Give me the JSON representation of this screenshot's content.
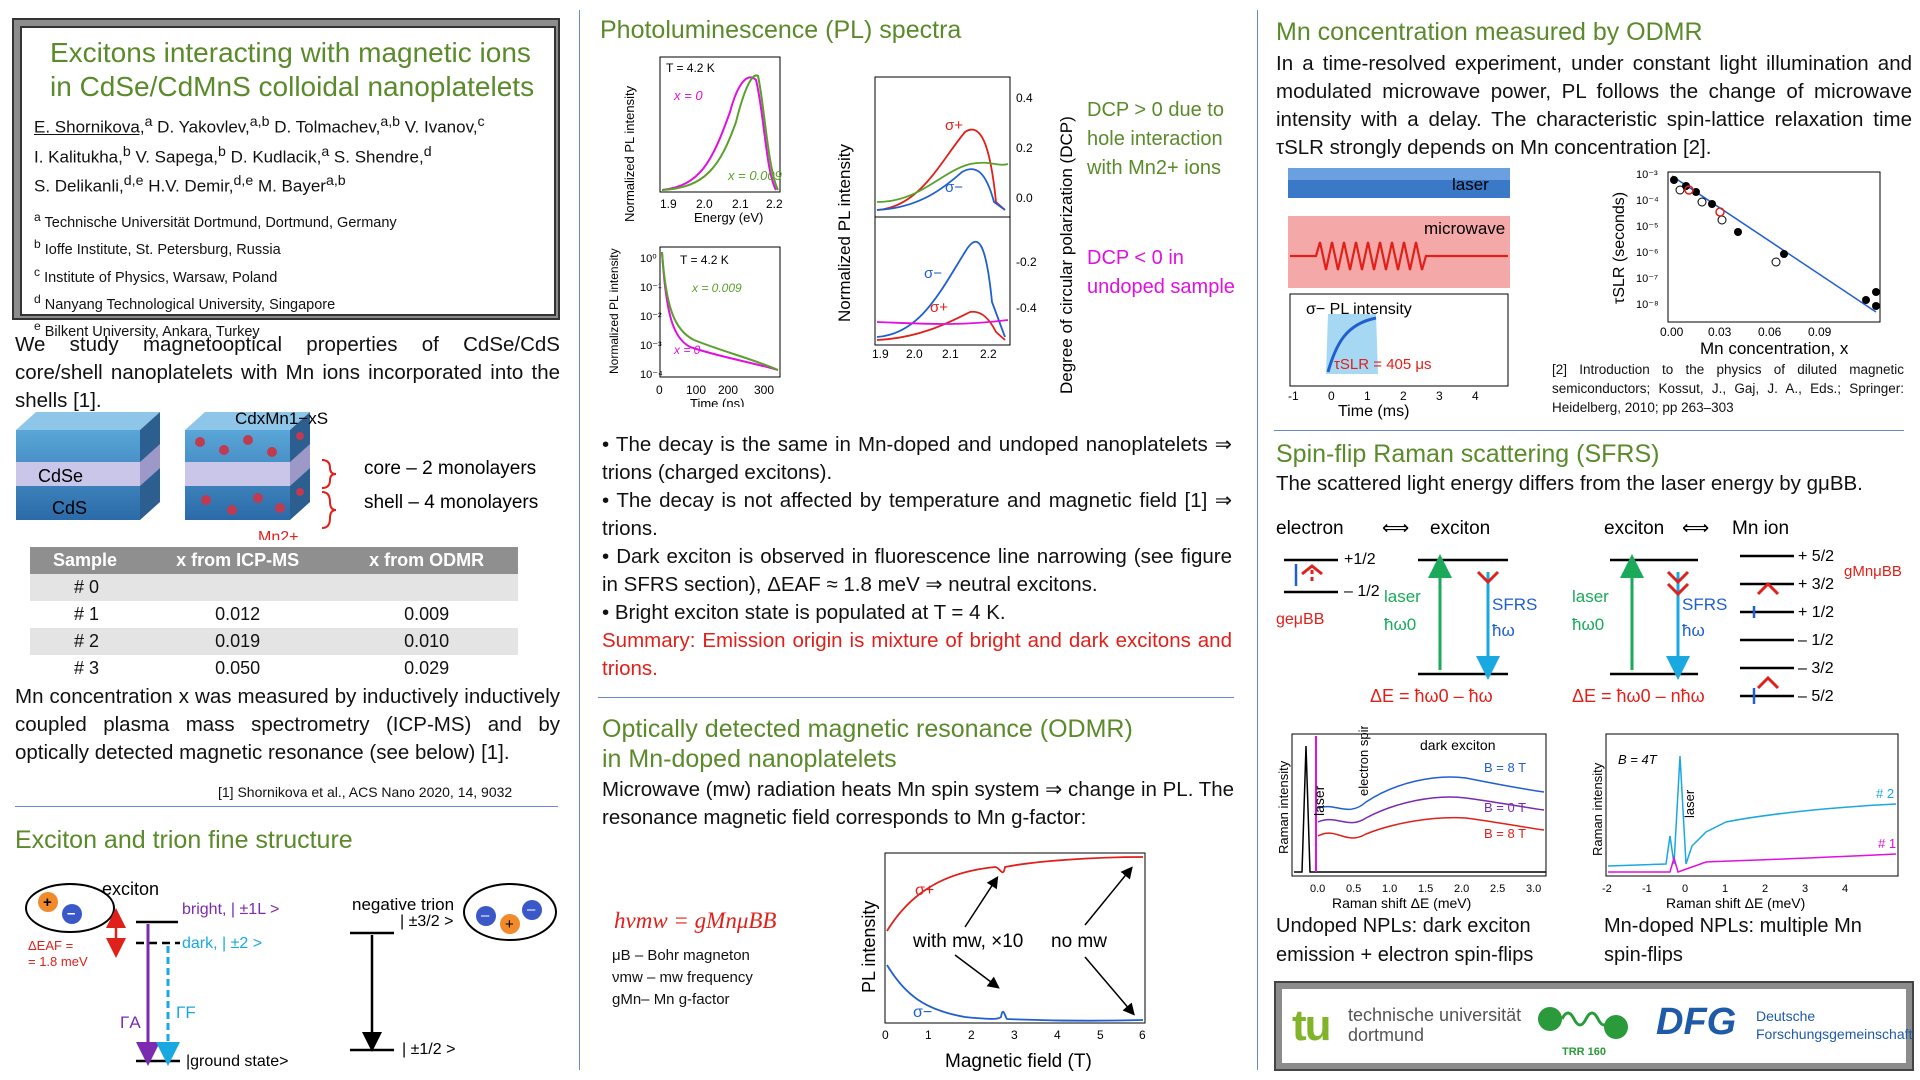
{
  "title": {
    "line1": "Excitons interacting with magnetic ions",
    "line2": "in CdSe/CdMnS colloidal nanoplatelets",
    "authors1": "E. Shornikova,",
    "authors1b": "D. Yakovlev,",
    "authors1c": "D. Tolmachev,",
    "authors1d": "V. Ivanov,",
    "sup_a": "a",
    "sup_ab": "a,b",
    "sup_c": "c",
    "sup_b": "b",
    "sup_d": "d",
    "sup_de": "d,e",
    "authors2a": "I. Kalitukha,",
    "authors2b": "V. Sapega,",
    "authors2c": "D. Kudlacik,",
    "authors2d": "S. Shendre,",
    "authors3a": "S. Delikanli,",
    "authors3b": "H.V. Demir,",
    "authors3c": "M. Bayer",
    "aff": [
      {
        "sup": "a",
        "text": "Technische Universität Dortmund, Dortmund, Germany"
      },
      {
        "sup": "b",
        "text": "Ioffe Institute, St. Petersburg, Russia"
      },
      {
        "sup": "c",
        "text": "Institute of Physics, Warsaw, Poland"
      },
      {
        "sup": "d",
        "text": "Nanyang Technological University, Singapore"
      },
      {
        "sup": "e",
        "text": "Bilkent University, Ankara, Turkey"
      }
    ]
  },
  "intro": "We study magnetooptical properties of CdSe/CdS core/shell nanoplatelets with Mn ions incorporated into the shells [1].",
  "npl": {
    "formula": "CdxMn1−xS",
    "cdse": "CdSe",
    "cds": "CdS",
    "mn": "Mn2+",
    "core": "core – 2 monolayers",
    "shell": "shell – 4 monolayers"
  },
  "table": {
    "headers": [
      "Sample",
      "x from ICP-MS",
      "x from ODMR"
    ],
    "rows": [
      [
        "# 0",
        "",
        ""
      ],
      [
        "# 1",
        "0.012",
        "0.009"
      ],
      [
        "# 2",
        "0.019",
        "0.010"
      ],
      [
        "# 3",
        "0.050",
        "0.029"
      ]
    ]
  },
  "mn_conc_text": "Mn concentration x was measured by inductively inductively coupled plasma mass spectrometry (ICP-MS) and by optically detected magnetic resonance (see below) [1].",
  "ref1": "[1] Shornikova et al., ACS Nano 2020, 14, 9032",
  "fine": {
    "title": "Exciton and trion fine structure",
    "exciton": "exciton",
    "bright": "bright, | ±1L >",
    "dark": "dark, | ±2 >",
    "daf1": "ΔEAF =",
    "daf2": "= 1.8 meV",
    "gamma_a": "ΓA",
    "gamma_f": "ΓF",
    "ground": "|ground state>",
    "trion": "negative trion",
    "t32": "| ±3/2 >",
    "t12": "| ±1/2 >"
  },
  "pl": {
    "title": "Photoluminescence (PL) spectra",
    "bullets": [
      "• The decay is the same in Mn-doped and undoped nanoplatelets ⇒ trions (charged excitons).",
      "• The decay is not affected by temperature and magnetic field [1] ⇒ trions.",
      "• Dark exciton is observed in fluorescence line narrowing (see figure in SFRS section), ΔEAF ≈ 1.8 meV ⇒ neutral excitons.",
      "• Bright exciton state is populated at T = 4 K."
    ],
    "summary": "Summary: Emission origin is mixture of bright and dark excitons and trions.",
    "dcp_pos": "DCP > 0 due to hole interaction with Mn2+ ions",
    "dcp_neg": "DCP < 0 in undoped sample",
    "fig1": {
      "t": "T = 4.2 K",
      "x0": "x = 0",
      "x9": "x = 0.009",
      "xlabel": "Energy (eV)",
      "ylabel": "Normalized PL intensity",
      "ticks": [
        "1.9",
        "2.0",
        "2.1",
        "2.2"
      ]
    },
    "fig2": {
      "t": "T = 4.2 K",
      "x9": "x = 0.009",
      "x0": "x = 0",
      "xlabel": "Time (ns)",
      "ylabel": "Normalized PL intensity",
      "ticks": [
        "0",
        "100",
        "200",
        "300"
      ],
      "yticks": [
        "10⁰",
        "10⁻¹",
        "10⁻²",
        "10⁻³",
        "10⁻⁴"
      ]
    },
    "fig3": {
      "ylabel": "Normalized PL intensity",
      "yr": "Degree of circular polarization (DCP)",
      "sp": "σ+",
      "sm": "σ−",
      "ticks": [
        "1.9",
        "2.0",
        "2.1",
        "2.2"
      ],
      "rt1": [
        "0.4",
        "0.2",
        "0.0"
      ],
      "rt2": [
        "-0.2",
        "-0.4"
      ]
    }
  },
  "odmr": {
    "title1": "Optically detected magnetic resonance (ODMR)",
    "title2": "in Mn-doped nanoplatelets",
    "text": "Microwave (mw) radiation heats Mn spin system ⇒ change in PL. The resonance magnetic field corresponds to Mn g-factor:",
    "eq": "hνmw = gMnμBB",
    "l1": "μB – Bohr magneton",
    "l2": "νmw – mw frequency",
    "l3": "gMn– Mn g-factor",
    "withmw": "with mw, ×10",
    "nomw": "no mw",
    "sp": "σ+",
    "sm": "σ−",
    "ylabel": "PL intensity",
    "xlabel": "Magnetic field (T)",
    "ticks": [
      "0",
      "1",
      "2",
      "3",
      "4",
      "5",
      "6"
    ]
  },
  "mnc": {
    "title": "Mn concentration measured by ODMR",
    "text": "In a time-resolved experiment, under constant light illumination and modulated microwave power, PL follows the change of microwave intensity with a delay. The characteristic spin-lattice relaxation time τSLR strongly depends on Mn concentration [2].",
    "laser": "laser",
    "microwave": "microwave",
    "pl": "σ− PL intensity",
    "tau": "τSLR = 405 μs",
    "time": "Time (ms)",
    "tticks": [
      "-1",
      "0",
      "1",
      "2",
      "3",
      "4"
    ],
    "ylabel": "τSLR (seconds)",
    "xlabel": "Mn concentration, x",
    "xticks": [
      "0.00",
      "0.03",
      "0.06",
      "0.09"
    ],
    "yticks": [
      "10⁻³",
      "10⁻⁴",
      "10⁻⁵",
      "10⁻⁶",
      "10⁻⁷",
      "10⁻⁸"
    ],
    "ref2": "[2] Introduction to the physics of diluted magnetic semiconductors; Kossut, J., Gaj, J. A., Eds.; Springer: Heidelberg, 2010; pp 263–303"
  },
  "sfrs": {
    "title": "Spin-flip Raman scattering (SFRS)",
    "text": "The scattered light energy differs from the laser energy by gμBB.",
    "electron": "electron",
    "exciton": "exciton",
    "exciton2": "exciton",
    "mnion": "Mn ion",
    "arrow": "⟺",
    "p12": "+1/2",
    "m12": "– 1/2",
    "ge": "geμBB",
    "laser": "laser",
    "hw0": "ħω0",
    "sfrs": "SFRS",
    "hw": "ħω",
    "de1": "ΔE = ħω0 – ħω",
    "de2": "ΔE = ħω0 – nħω",
    "gmn": "gMnμBB",
    "levels": [
      "+ 5/2",
      "+ 3/2",
      "+ 1/2",
      "– 1/2",
      "– 3/2",
      "– 5/2"
    ],
    "fig1": {
      "laser": "laser",
      "el": "electron spin-flip",
      "dark": "dark exciton",
      "b8": "B = 8 T",
      "b0": "B = 0 T",
      "b8b": "B = 8 T",
      "ylabel": "Raman intensity",
      "xlabel": "Raman shift ΔE (meV)",
      "ticks": [
        "0.0",
        "0.5",
        "1.0",
        "1.5",
        "2.0",
        "2.5",
        "3.0"
      ]
    },
    "fig2": {
      "b": "B = 4T",
      "laser": "laser",
      "ylabel": "Raman intensity",
      "xlabel": "Raman shift ΔE (meV)",
      "s2": "# 2",
      "s1": "# 1",
      "ticks": [
        "-2",
        "-1",
        "0",
        "1",
        "2",
        "3",
        "4"
      ]
    },
    "cap1": "Undoped NPLs: dark exciton emission + electron spin-flips",
    "cap2": "Mn-doped NPLs: multiple Mn spin-flips"
  },
  "logos": {
    "tu1": "technische universität",
    "tu2": "dortmund",
    "trr": "TRR 160",
    "dfg": "DFG",
    "dfg1": "Deutsche",
    "dfg2": "Forschungsgemeinschaft"
  },
  "colors": {
    "accent": "#5a8a2a",
    "red": "#e0201a",
    "blue": "#1f5fd0",
    "magenta": "#e010e0"
  }
}
